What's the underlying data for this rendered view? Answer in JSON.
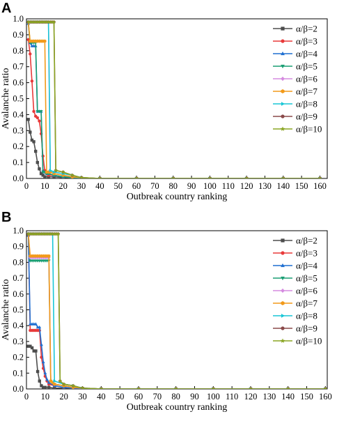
{
  "panels": [
    {
      "letter": "A"
    },
    {
      "letter": "B"
    }
  ],
  "chart_data": [
    {
      "type": "line",
      "panel": "A",
      "xlabel": "Outbreak country ranking",
      "ylabel": "Avalanche ratio",
      "xlim": [
        0,
        164
      ],
      "ylim": [
        0,
        1.0
      ],
      "xticks": [
        0,
        10,
        20,
        30,
        40,
        50,
        60,
        70,
        80,
        90,
        100,
        110,
        120,
        130,
        140,
        150,
        160
      ],
      "yticks": [
        0.0,
        0.1,
        0.2,
        0.3,
        0.4,
        0.5,
        0.6,
        0.7,
        0.8,
        0.9,
        1.0
      ],
      "grid": false,
      "legend_position": "top-right",
      "series": [
        {
          "name": "α/β=2",
          "color": "#4d4d4d",
          "marker": "square",
          "x": [
            1,
            2,
            3,
            4,
            5,
            6,
            7,
            8,
            9,
            10,
            12,
            15,
            20,
            25,
            30,
            40,
            60,
            80,
            100,
            120,
            140,
            160
          ],
          "y": [
            0.37,
            0.29,
            0.24,
            0.23,
            0.17,
            0.1,
            0.06,
            0.03,
            0.02,
            0.01,
            0.01,
            0.01,
            0.005,
            0.003,
            0.002,
            0.0,
            0.0,
            0.0,
            0.0,
            0.0,
            0.0,
            0.0
          ]
        },
        {
          "name": "α/β=3",
          "color": "#e83a3a",
          "marker": "circle",
          "x": [
            1,
            2,
            3,
            4,
            5,
            6,
            7,
            8,
            9,
            10,
            11,
            12,
            15,
            20,
            25,
            30,
            40,
            60,
            80,
            100,
            120,
            140,
            160
          ],
          "y": [
            0.87,
            0.78,
            0.61,
            0.42,
            0.39,
            0.38,
            0.36,
            0.28,
            0.14,
            0.05,
            0.03,
            0.02,
            0.02,
            0.01,
            0.005,
            0.003,
            0.0,
            0.0,
            0.0,
            0.0,
            0.0,
            0.0,
            0.0
          ]
        },
        {
          "name": "α/β=4",
          "color": "#1f6fd1",
          "marker": "triangle-up",
          "x": [
            1,
            2,
            3,
            4,
            5,
            6,
            7,
            8,
            9,
            10,
            11,
            12,
            15,
            20,
            25,
            30,
            40,
            60,
            80,
            100,
            120,
            140,
            160
          ],
          "y": [
            0.97,
            0.85,
            0.83,
            0.83,
            0.83,
            0.42,
            0.42,
            0.42,
            0.05,
            0.04,
            0.03,
            0.03,
            0.02,
            0.01,
            0.005,
            0.003,
            0.0,
            0.0,
            0.0,
            0.0,
            0.0,
            0.0,
            0.0
          ]
        },
        {
          "name": "α/β=5",
          "color": "#1a9e73",
          "marker": "triangle-down",
          "x": [
            1,
            2,
            3,
            4,
            5,
            6,
            7,
            8,
            9,
            10,
            11,
            12,
            15,
            20,
            25,
            30,
            40,
            60,
            80,
            100,
            120,
            140,
            160
          ],
          "y": [
            0.98,
            0.85,
            0.85,
            0.85,
            0.85,
            0.42,
            0.42,
            0.42,
            0.04,
            0.04,
            0.03,
            0.03,
            0.02,
            0.01,
            0.005,
            0.003,
            0.0,
            0.0,
            0.0,
            0.0,
            0.0,
            0.0,
            0.0
          ]
        },
        {
          "name": "α/β=6",
          "color": "#d58be0",
          "marker": "diamond",
          "x": [
            1,
            2,
            3,
            4,
            5,
            6,
            7,
            8,
            9,
            10,
            11,
            12,
            13,
            15,
            20,
            25,
            30,
            40,
            60,
            80,
            100,
            120,
            140,
            160
          ],
          "y": [
            0.98,
            0.98,
            0.98,
            0.98,
            0.98,
            0.98,
            0.98,
            0.98,
            0.98,
            0.98,
            0.98,
            0.98,
            0.04,
            0.03,
            0.02,
            0.01,
            0.005,
            0.0,
            0.0,
            0.0,
            0.0,
            0.0,
            0.0,
            0.0
          ]
        },
        {
          "name": "α/β=7",
          "color": "#f29a1a",
          "marker": "hexagon",
          "x": [
            1,
            2,
            3,
            4,
            5,
            6,
            7,
            8,
            9,
            10,
            11,
            12,
            13,
            15,
            20,
            25,
            30,
            40,
            60,
            80,
            100,
            120,
            140,
            160
          ],
          "y": [
            0.98,
            0.86,
            0.86,
            0.86,
            0.86,
            0.86,
            0.86,
            0.86,
            0.86,
            0.86,
            0.04,
            0.04,
            0.04,
            0.03,
            0.02,
            0.01,
            0.005,
            0.0,
            0.0,
            0.0,
            0.0,
            0.0,
            0.0,
            0.0
          ]
        },
        {
          "name": "α/β=8",
          "color": "#19c6d6",
          "marker": "triangle-right",
          "x": [
            1,
            2,
            3,
            4,
            5,
            6,
            7,
            8,
            9,
            10,
            11,
            12,
            13,
            15,
            20,
            25,
            30,
            40,
            60,
            80,
            100,
            120,
            140,
            160
          ],
          "y": [
            0.98,
            0.98,
            0.98,
            0.98,
            0.98,
            0.98,
            0.98,
            0.98,
            0.98,
            0.98,
            0.98,
            0.98,
            0.05,
            0.04,
            0.03,
            0.02,
            0.005,
            0.0,
            0.0,
            0.0,
            0.0,
            0.0,
            0.0,
            0.0
          ]
        },
        {
          "name": "α/β=9",
          "color": "#8a4a4a",
          "marker": "circle",
          "x": [
            1,
            2,
            3,
            4,
            5,
            6,
            7,
            8,
            9,
            10,
            11,
            12,
            13,
            14,
            15,
            16,
            20,
            25,
            30,
            40,
            60,
            80,
            100,
            120,
            140,
            160
          ],
          "y": [
            0.98,
            0.98,
            0.98,
            0.98,
            0.98,
            0.98,
            0.98,
            0.98,
            0.98,
            0.98,
            0.98,
            0.98,
            0.98,
            0.98,
            0.98,
            0.05,
            0.04,
            0.02,
            0.005,
            0.0,
            0.0,
            0.0,
            0.0,
            0.0,
            0.0,
            0.0
          ]
        },
        {
          "name": "α/β=10",
          "color": "#8aa523",
          "marker": "star",
          "x": [
            1,
            2,
            3,
            4,
            5,
            6,
            7,
            8,
            9,
            10,
            11,
            12,
            13,
            14,
            15,
            16,
            20,
            25,
            30,
            40,
            60,
            80,
            100,
            120,
            140,
            160
          ],
          "y": [
            0.98,
            0.98,
            0.98,
            0.98,
            0.98,
            0.98,
            0.98,
            0.98,
            0.98,
            0.98,
            0.98,
            0.98,
            0.98,
            0.98,
            0.98,
            0.05,
            0.04,
            0.02,
            0.005,
            0.0,
            0.0,
            0.0,
            0.0,
            0.0,
            0.0,
            0.0
          ]
        }
      ]
    },
    {
      "type": "line",
      "panel": "B",
      "xlabel": "Outbreak country ranking",
      "ylabel": "Avalanche ratio",
      "xlim": [
        0,
        161
      ],
      "ylim": [
        0,
        1.0
      ],
      "xticks": [
        0,
        10,
        20,
        30,
        40,
        50,
        60,
        70,
        80,
        90,
        100,
        110,
        120,
        130,
        140,
        150,
        160
      ],
      "yticks": [
        0.0,
        0.1,
        0.2,
        0.3,
        0.4,
        0.5,
        0.6,
        0.7,
        0.8,
        0.9,
        1.0
      ],
      "grid": false,
      "legend_position": "top-right",
      "series": [
        {
          "name": "α/β=2",
          "color": "#4d4d4d",
          "marker": "square",
          "x": [
            1,
            2,
            3,
            4,
            5,
            6,
            7,
            8,
            9,
            10,
            12,
            15,
            20,
            25,
            30,
            40,
            60,
            80,
            100,
            120,
            140,
            160
          ],
          "y": [
            0.27,
            0.27,
            0.26,
            0.24,
            0.24,
            0.11,
            0.05,
            0.02,
            0.01,
            0.01,
            0.01,
            0.005,
            0.005,
            0.003,
            0.002,
            0.0,
            0.0,
            0.0,
            0.0,
            0.0,
            0.0,
            0.0
          ]
        },
        {
          "name": "α/β=3",
          "color": "#e83a3a",
          "marker": "circle",
          "x": [
            1,
            2,
            3,
            4,
            5,
            6,
            7,
            8,
            9,
            10,
            11,
            12,
            15,
            20,
            25,
            30,
            40,
            60,
            80,
            100,
            120,
            140,
            160
          ],
          "y": [
            0.97,
            0.37,
            0.37,
            0.37,
            0.37,
            0.37,
            0.37,
            0.2,
            0.13,
            0.08,
            0.05,
            0.03,
            0.02,
            0.01,
            0.005,
            0.003,
            0.0,
            0.0,
            0.0,
            0.0,
            0.0,
            0.0,
            0.0
          ]
        },
        {
          "name": "α/β=4",
          "color": "#1f6fd1",
          "marker": "triangle-up",
          "x": [
            1,
            2,
            3,
            4,
            5,
            6,
            7,
            8,
            9,
            10,
            11,
            12,
            15,
            20,
            25,
            30,
            40,
            60,
            80,
            100,
            120,
            140,
            160
          ],
          "y": [
            0.97,
            0.41,
            0.41,
            0.41,
            0.41,
            0.39,
            0.39,
            0.28,
            0.17,
            0.1,
            0.06,
            0.04,
            0.02,
            0.01,
            0.005,
            0.003,
            0.0,
            0.0,
            0.0,
            0.0,
            0.0,
            0.0,
            0.0
          ]
        },
        {
          "name": "α/β=5",
          "color": "#1a9e73",
          "marker": "triangle-down",
          "x": [
            1,
            2,
            3,
            4,
            5,
            6,
            7,
            8,
            9,
            10,
            11,
            12,
            13,
            15,
            20,
            25,
            30,
            40,
            60,
            80,
            100,
            120,
            140,
            160
          ],
          "y": [
            0.97,
            0.81,
            0.81,
            0.81,
            0.81,
            0.81,
            0.81,
            0.81,
            0.81,
            0.81,
            0.81,
            0.81,
            0.05,
            0.03,
            0.02,
            0.01,
            0.005,
            0.0,
            0.0,
            0.0,
            0.0,
            0.0,
            0.0,
            0.0
          ]
        },
        {
          "name": "α/β=6",
          "color": "#d58be0",
          "marker": "diamond",
          "x": [
            1,
            2,
            3,
            4,
            5,
            6,
            7,
            8,
            9,
            10,
            11,
            12,
            13,
            14,
            15,
            20,
            25,
            30,
            40,
            60,
            80,
            100,
            120,
            140,
            160
          ],
          "y": [
            0.98,
            0.83,
            0.83,
            0.83,
            0.83,
            0.83,
            0.83,
            0.83,
            0.83,
            0.83,
            0.83,
            0.83,
            0.05,
            0.04,
            0.03,
            0.02,
            0.01,
            0.005,
            0.0,
            0.0,
            0.0,
            0.0,
            0.0,
            0.0,
            0.0
          ]
        },
        {
          "name": "α/β=7",
          "color": "#f29a1a",
          "marker": "hexagon",
          "x": [
            1,
            2,
            3,
            4,
            5,
            6,
            7,
            8,
            9,
            10,
            11,
            12,
            13,
            14,
            15,
            20,
            25,
            30,
            40,
            60,
            80,
            100,
            120,
            140,
            160
          ],
          "y": [
            0.98,
            0.84,
            0.84,
            0.84,
            0.84,
            0.84,
            0.84,
            0.84,
            0.84,
            0.84,
            0.84,
            0.84,
            0.05,
            0.04,
            0.03,
            0.02,
            0.01,
            0.005,
            0.0,
            0.0,
            0.0,
            0.0,
            0.0,
            0.0,
            0.0
          ]
        },
        {
          "name": "α/β=8",
          "color": "#19c6d6",
          "marker": "triangle-right",
          "x": [
            1,
            2,
            3,
            4,
            5,
            6,
            7,
            8,
            9,
            10,
            11,
            12,
            13,
            14,
            15,
            20,
            25,
            30,
            40,
            60,
            80,
            100,
            120,
            140,
            160
          ],
          "y": [
            0.98,
            0.98,
            0.98,
            0.98,
            0.98,
            0.98,
            0.98,
            0.98,
            0.98,
            0.98,
            0.98,
            0.98,
            0.98,
            0.98,
            0.05,
            0.03,
            0.02,
            0.005,
            0.0,
            0.0,
            0.0,
            0.0,
            0.0,
            0.0,
            0.0
          ]
        },
        {
          "name": "α/β=9",
          "color": "#8a4a4a",
          "marker": "circle",
          "x": [
            1,
            2,
            3,
            4,
            5,
            6,
            7,
            8,
            9,
            10,
            11,
            12,
            13,
            14,
            15,
            16,
            17,
            18,
            20,
            25,
            30,
            40,
            60,
            80,
            100,
            120,
            140,
            160
          ],
          "y": [
            0.98,
            0.98,
            0.98,
            0.98,
            0.98,
            0.98,
            0.98,
            0.98,
            0.98,
            0.98,
            0.98,
            0.98,
            0.98,
            0.98,
            0.98,
            0.98,
            0.98,
            0.05,
            0.03,
            0.02,
            0.005,
            0.0,
            0.0,
            0.0,
            0.0,
            0.0,
            0.0,
            0.0
          ]
        },
        {
          "name": "α/β=10",
          "color": "#8aa523",
          "marker": "star",
          "x": [
            1,
            2,
            3,
            4,
            5,
            6,
            7,
            8,
            9,
            10,
            11,
            12,
            13,
            14,
            15,
            16,
            17,
            18,
            20,
            25,
            30,
            40,
            60,
            80,
            100,
            120,
            140,
            160
          ],
          "y": [
            0.98,
            0.98,
            0.98,
            0.98,
            0.98,
            0.98,
            0.98,
            0.98,
            0.98,
            0.98,
            0.98,
            0.98,
            0.98,
            0.98,
            0.98,
            0.98,
            0.98,
            0.05,
            0.03,
            0.02,
            0.005,
            0.0,
            0.0,
            0.0,
            0.0,
            0.0,
            0.0,
            0.0
          ]
        }
      ]
    }
  ]
}
